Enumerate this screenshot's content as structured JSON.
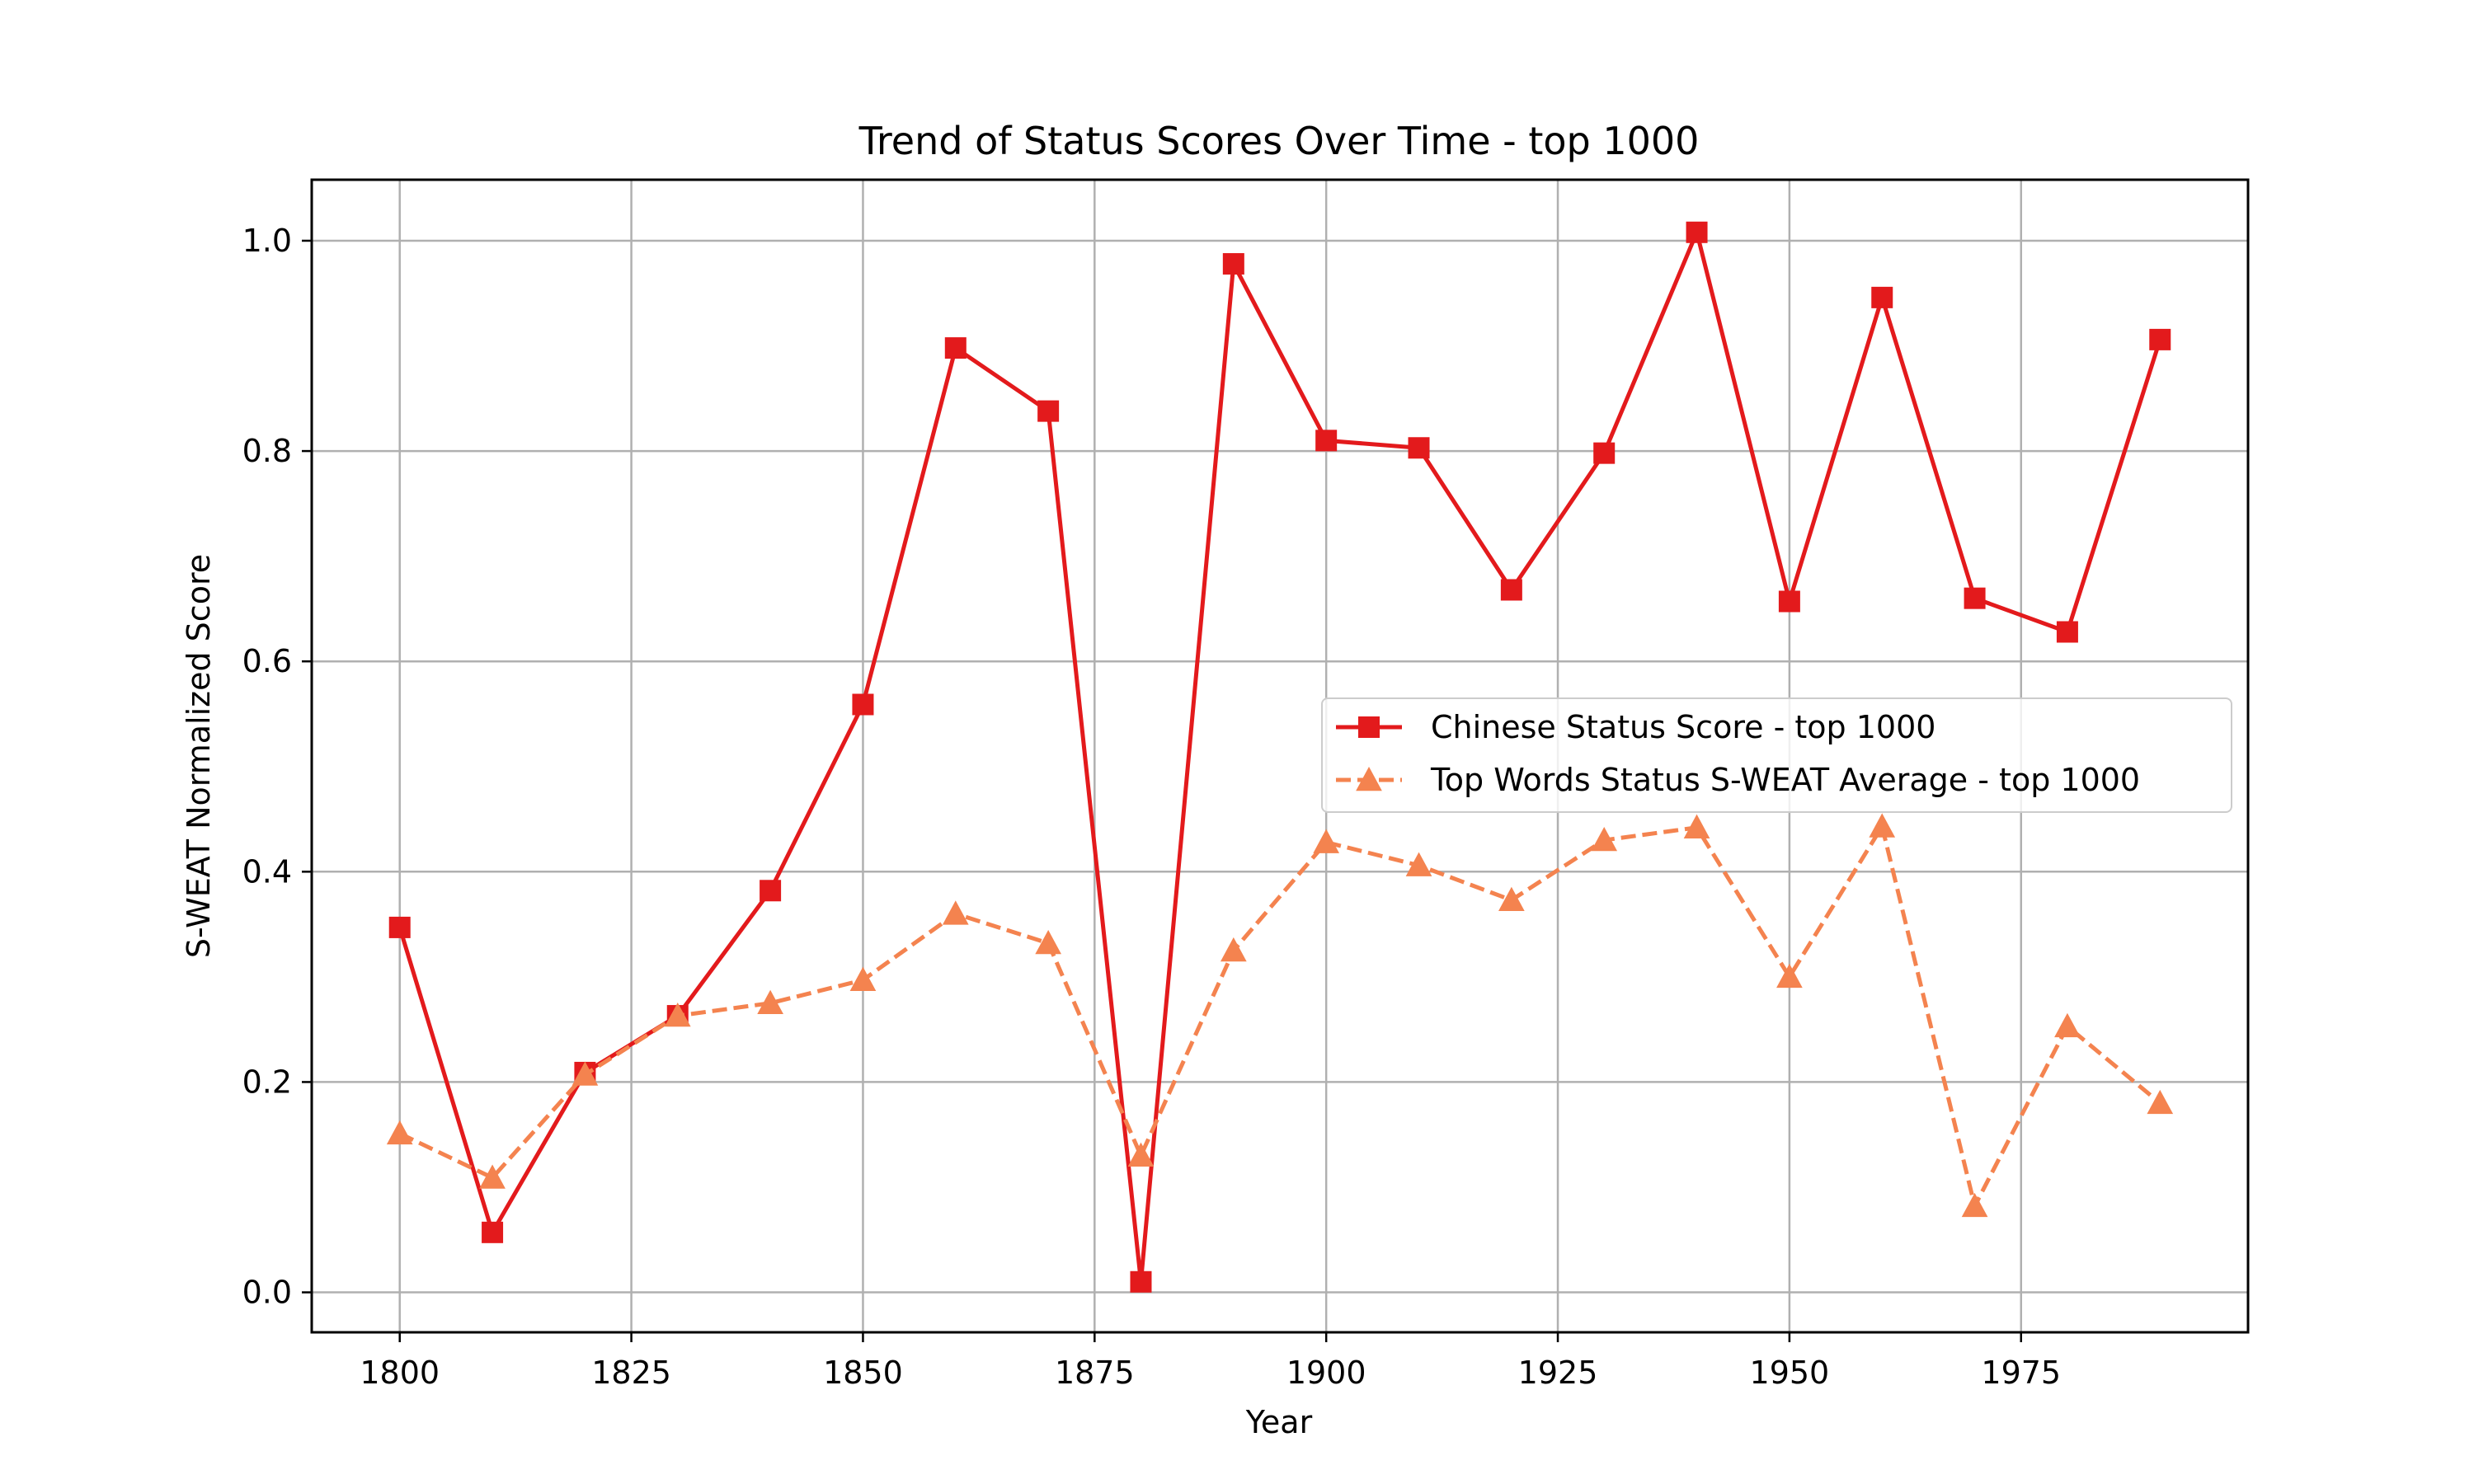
{
  "chart_data": {
    "type": "line",
    "title": "Trend of Status Scores Over Time - top 1000",
    "xlabel": "Year",
    "ylabel": "S-WEAT Normalized Score",
    "xlim": [
      1790.5,
      1999.5
    ],
    "ylim": [
      -0.038,
      1.058
    ],
    "x_ticks": [
      1800,
      1825,
      1850,
      1875,
      1900,
      1925,
      1950,
      1975
    ],
    "y_ticks": [
      0.0,
      0.2,
      0.4,
      0.6,
      0.8,
      1.0
    ],
    "y_tick_labels": [
      "0.0",
      "0.2",
      "0.4",
      "0.6",
      "0.8",
      "1.0"
    ],
    "grid": true,
    "legend_position": "center-right",
    "x": [
      1800,
      1810,
      1820,
      1830,
      1840,
      1850,
      1860,
      1870,
      1880,
      1890,
      1900,
      1910,
      1920,
      1930,
      1940,
      1950,
      1960,
      1970,
      1980,
      1990
    ],
    "series": [
      {
        "name": "Chinese Status Score - top 1000",
        "color": "#e31a1c",
        "line_style": "solid",
        "marker": "square",
        "values": [
          0.347,
          0.057,
          0.209,
          0.263,
          0.382,
          0.559,
          0.898,
          0.838,
          0.01,
          0.978,
          0.81,
          0.803,
          0.668,
          0.798,
          1.008,
          0.657,
          0.946,
          0.66,
          0.628,
          0.906
        ]
      },
      {
        "name": "Top Words Status S-WEAT Average - top 1000",
        "color": "#f4834f",
        "line_style": "dashed",
        "marker": "triangle",
        "values": [
          0.151,
          0.109,
          0.207,
          0.263,
          0.275,
          0.297,
          0.36,
          0.332,
          0.13,
          0.325,
          0.428,
          0.406,
          0.373,
          0.43,
          0.442,
          0.3,
          0.443,
          0.082,
          0.253,
          0.18
        ]
      }
    ]
  }
}
